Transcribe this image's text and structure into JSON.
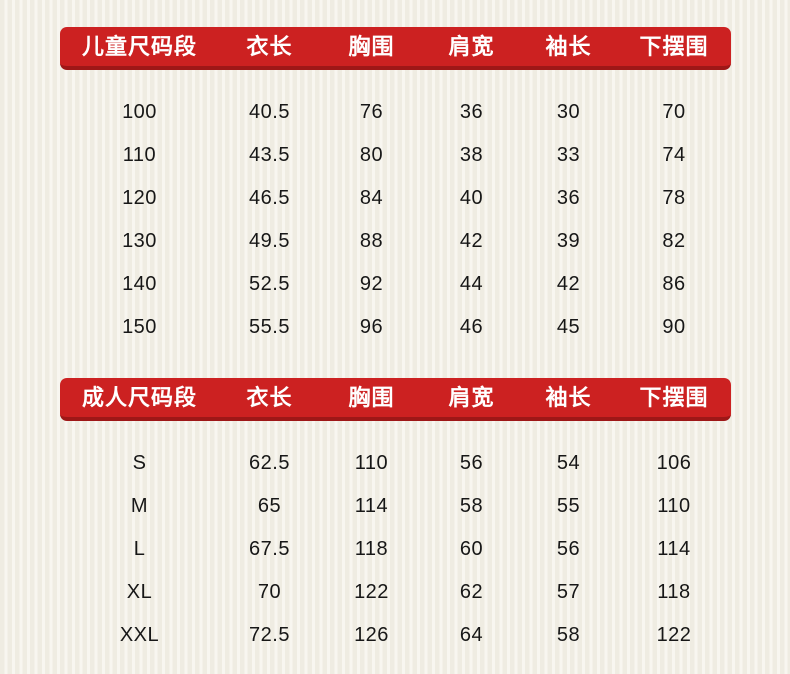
{
  "colors": {
    "header_red": "#cc2121",
    "header_red_shadow": "#9e1717",
    "header_text": "#ffffff",
    "cell_text": "#171717",
    "background_stripe_dark": "#efece2",
    "background_stripe_light": "#f8f6f0"
  },
  "chart_data": [
    {
      "type": "table",
      "title": "儿童尺码段",
      "columns": [
        "儿童尺码段",
        "衣长",
        "胸围",
        "肩宽",
        "袖长",
        "下摆围"
      ],
      "rows": [
        [
          "100",
          "40.5",
          "76",
          "36",
          "30",
          "70"
        ],
        [
          "110",
          "43.5",
          "80",
          "38",
          "33",
          "74"
        ],
        [
          "120",
          "46.5",
          "84",
          "40",
          "36",
          "78"
        ],
        [
          "130",
          "49.5",
          "88",
          "42",
          "39",
          "82"
        ],
        [
          "140",
          "52.5",
          "92",
          "44",
          "42",
          "86"
        ],
        [
          "150",
          "55.5",
          "96",
          "46",
          "45",
          "90"
        ]
      ]
    },
    {
      "type": "table",
      "title": "成人尺码段",
      "columns": [
        "成人尺码段",
        "衣长",
        "胸围",
        "肩宽",
        "袖长",
        "下摆围"
      ],
      "rows": [
        [
          "S",
          "62.5",
          "110",
          "56",
          "54",
          "106"
        ],
        [
          "M",
          "65",
          "114",
          "58",
          "55",
          "110"
        ],
        [
          "L",
          "67.5",
          "118",
          "60",
          "56",
          "114"
        ],
        [
          "XL",
          "70",
          "122",
          "62",
          "57",
          "118"
        ],
        [
          "XXL",
          "72.5",
          "126",
          "64",
          "58",
          "122"
        ]
      ]
    }
  ]
}
